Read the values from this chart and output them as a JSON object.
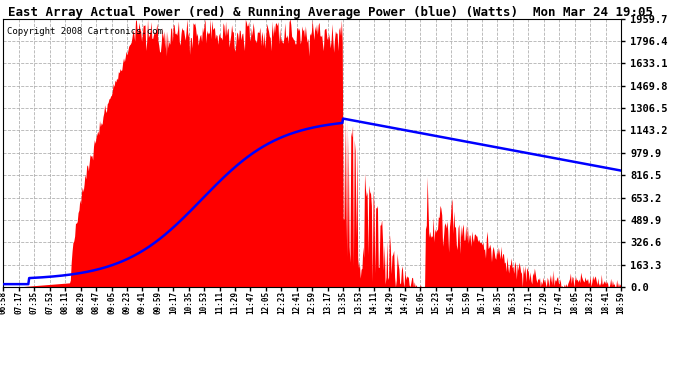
{
  "title": "East Array Actual Power (red) & Running Average Power (blue) (Watts)  Mon Mar 24 19:05",
  "copyright": "Copyright 2008 Cartronics.com",
  "bg_color": "#ffffff",
  "plot_bg_color": "#ffffff",
  "red_color": "#ff0000",
  "blue_color": "#0000ff",
  "y_ticks": [
    0.0,
    163.3,
    326.6,
    489.9,
    653.2,
    816.5,
    979.9,
    1143.2,
    1306.5,
    1469.8,
    1633.1,
    1796.4,
    1959.7
  ],
  "x_labels": [
    "06:58",
    "07:17",
    "07:35",
    "07:53",
    "08:11",
    "08:29",
    "08:47",
    "09:05",
    "09:23",
    "09:41",
    "09:59",
    "10:17",
    "10:35",
    "10:53",
    "11:11",
    "11:29",
    "11:47",
    "12:05",
    "12:23",
    "12:41",
    "12:59",
    "13:17",
    "13:35",
    "13:53",
    "14:11",
    "14:29",
    "14:47",
    "15:05",
    "15:23",
    "15:41",
    "15:59",
    "16:17",
    "16:35",
    "16:53",
    "17:11",
    "17:29",
    "17:47",
    "18:05",
    "18:23",
    "18:41",
    "18:59"
  ],
  "ymax": 1959.7,
  "ymin": 0.0,
  "title_fontsize": 9,
  "copyright_fontsize": 6.5,
  "ytick_fontsize": 7.5,
  "xtick_fontsize": 5.5
}
